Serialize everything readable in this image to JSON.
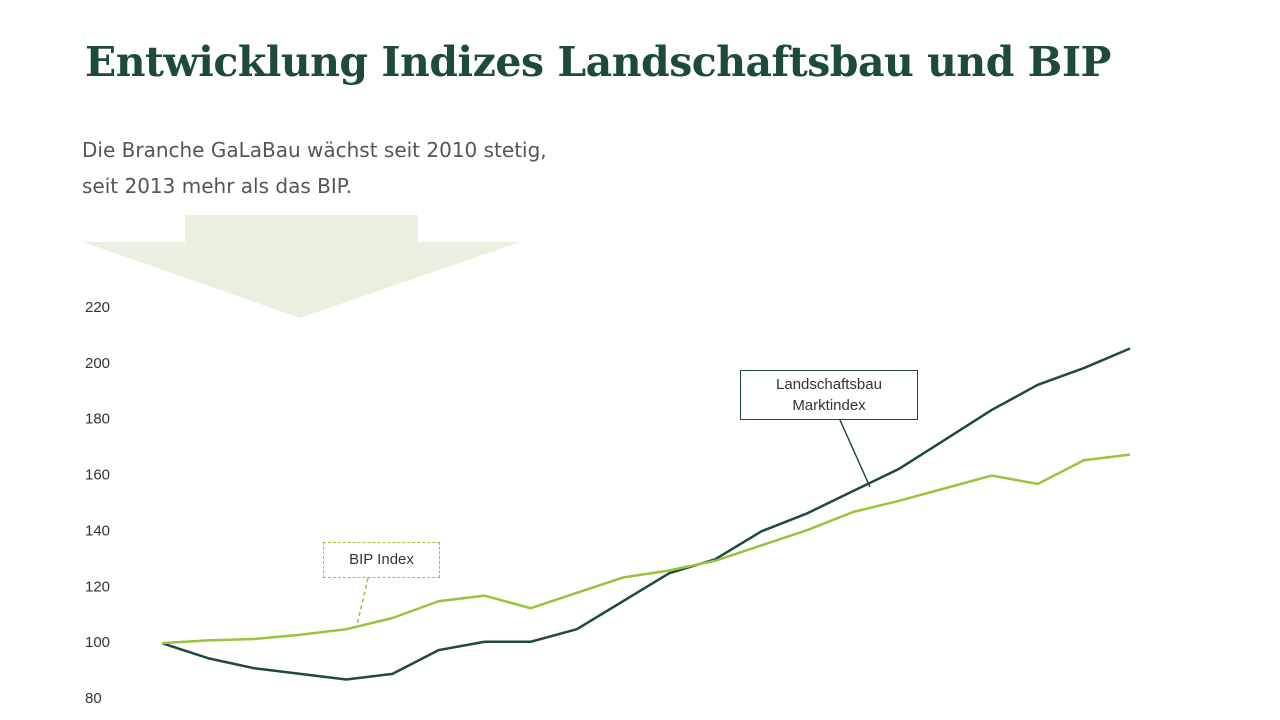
{
  "chart_data": {
    "type": "line",
    "title": "Entwicklung Indizes Landschaftsbau und BIP",
    "subtitle": "Die Branche GaLaBau wächst seit 2010 stetig, seit 2013 mehr als das BIP.",
    "categories": [
      null,
      null,
      null,
      null,
      null,
      null,
      null,
      null,
      null,
      null,
      null,
      null,
      null,
      null,
      null,
      null,
      null,
      null,
      null,
      null,
      null,
      null
    ],
    "series": [
      {
        "name": "Landschaftsbau Marktindex",
        "color": "#1e4a3f",
        "values": [
          100,
          94.6,
          91,
          89,
          87,
          89,
          97.5,
          100.5,
          100.5,
          105,
          115,
          125,
          130,
          140,
          146.5,
          154.5,
          162.5,
          173,
          183.5,
          192.5,
          198.5,
          205.5
        ]
      },
      {
        "name": "BIP Index",
        "color": "#9bc23c",
        "values": [
          100,
          101,
          101.5,
          103,
          105,
          109,
          115,
          117,
          112.5,
          118,
          123.5,
          126,
          129.5,
          135,
          140.5,
          147,
          151,
          155.5,
          160,
          157,
          165.5,
          167.5
        ]
      }
    ],
    "ylim": [
      80,
      220
    ],
    "yticks": [
      80,
      100,
      120,
      140,
      160,
      180,
      200,
      220
    ],
    "grid": false
  }
}
